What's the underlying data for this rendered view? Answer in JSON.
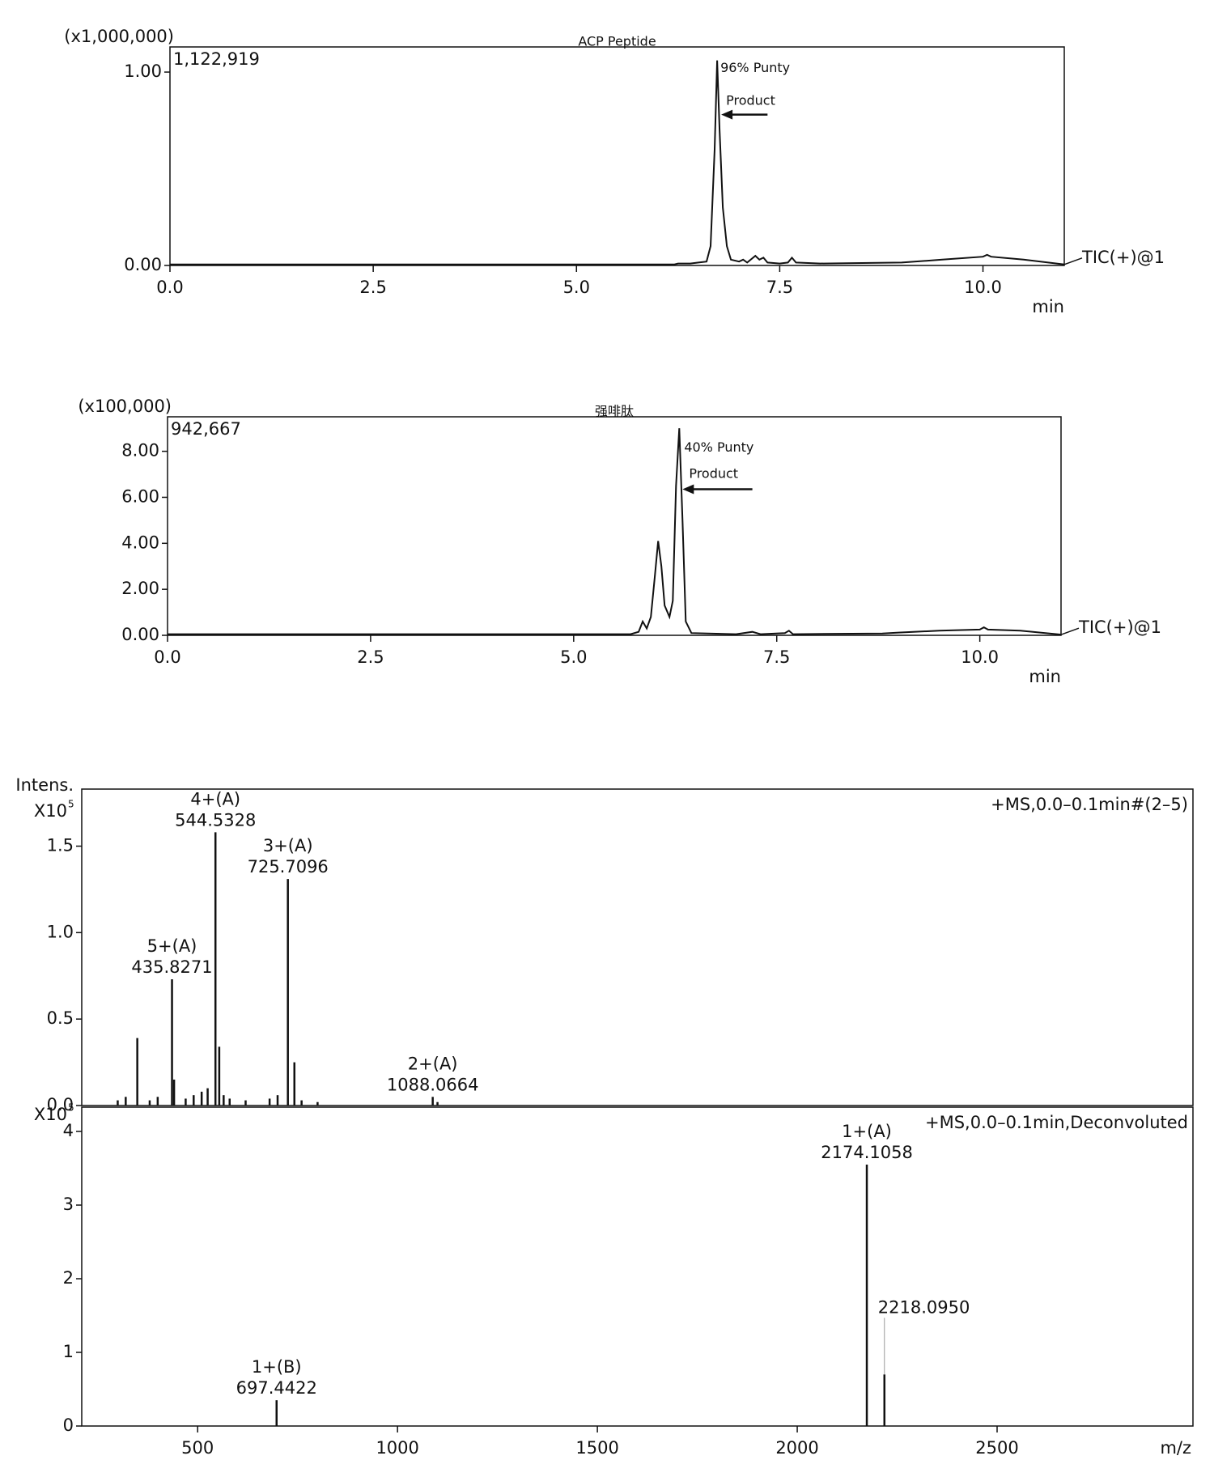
{
  "chart_data": [
    {
      "type": "line",
      "title": "ACP Peptide",
      "y_multiplier": "(x1,000,000)",
      "max_intensity_label": "1,122,919",
      "trace_label": "TIC(+)@1",
      "xlabel": "min",
      "annotations": [
        "96% Punty",
        "Product"
      ],
      "color": "#111111",
      "xlim": [
        0,
        11
      ],
      "ylim": [
        0,
        1.13
      ],
      "xticks": [
        {
          "value": 0,
          "label": "0.0"
        },
        2.5,
        {
          "value": 5,
          "label": "5.0"
        },
        7.5,
        {
          "value": 10,
          "label": "10.0"
        }
      ],
      "yticks": [
        {
          "value": 0,
          "label": "0.00"
        },
        {
          "value": 1,
          "label": "1.00"
        }
      ],
      "x": [
        0,
        6.2,
        6.25,
        6.4,
        6.5,
        6.6,
        6.65,
        6.7,
        6.73,
        6.76,
        6.8,
        6.85,
        6.9,
        7.0,
        7.05,
        7.1,
        7.2,
        7.25,
        7.3,
        7.35,
        7.5,
        7.6,
        7.65,
        7.7,
        8.0,
        9.0,
        9.5,
        10.0,
        10.05,
        10.1,
        10.5,
        11.0
      ],
      "values": [
        0.005,
        0.005,
        0.01,
        0.01,
        0.015,
        0.02,
        0.1,
        0.6,
        1.06,
        0.7,
        0.3,
        0.1,
        0.03,
        0.02,
        0.03,
        0.015,
        0.05,
        0.03,
        0.04,
        0.015,
        0.01,
        0.015,
        0.04,
        0.015,
        0.01,
        0.015,
        0.03,
        0.045,
        0.055,
        0.045,
        0.03,
        0.005
      ]
    },
    {
      "type": "line",
      "title": "强啡肽",
      "y_multiplier": "(x100,000)",
      "max_intensity_label": "942,667",
      "trace_label": "TIC(+)@1",
      "xlabel": "min",
      "annotations": [
        "40% Punty",
        "Product"
      ],
      "color": "#111111",
      "xlim": [
        0,
        11
      ],
      "ylim": [
        0,
        9.5
      ],
      "xticks": [
        {
          "value": 0,
          "label": "0.0"
        },
        2.5,
        {
          "value": 5,
          "label": "5.0"
        },
        7.5,
        {
          "value": 10,
          "label": "10.0"
        }
      ],
      "yticks": [
        {
          "value": 0,
          "label": "0.00"
        },
        {
          "value": 2,
          "label": "2.00"
        },
        {
          "value": 4,
          "label": "4.00"
        },
        {
          "value": 6,
          "label": "6.00"
        },
        {
          "value": 8,
          "label": "8.00"
        }
      ],
      "x": [
        0,
        5.7,
        5.8,
        5.85,
        5.9,
        5.95,
        6.0,
        6.04,
        6.08,
        6.12,
        6.18,
        6.22,
        6.26,
        6.3,
        6.34,
        6.38,
        6.45,
        7.0,
        7.2,
        7.3,
        7.6,
        7.65,
        7.7,
        8.8,
        9.0,
        9.5,
        10.0,
        10.05,
        10.1,
        10.5,
        11.0
      ],
      "values": [
        0.05,
        0.05,
        0.15,
        0.6,
        0.3,
        0.8,
        2.6,
        4.1,
        3.0,
        1.3,
        0.8,
        1.5,
        6.5,
        9.0,
        5.0,
        0.6,
        0.1,
        0.05,
        0.15,
        0.05,
        0.1,
        0.2,
        0.05,
        0.08,
        0.12,
        0.2,
        0.25,
        0.35,
        0.25,
        0.2,
        0.03
      ]
    },
    {
      "type": "stick",
      "ylabel": "Intens.",
      "y_multiplier": "X10",
      "y_exponent": "5",
      "legend": "+MS,0.0–0.1min#(2–5)",
      "color": "#111111",
      "xlim": [
        210,
        2990
      ],
      "ylim": [
        0,
        1.83
      ],
      "yticks": [
        {
          "value": 0,
          "label": "0.0"
        },
        0.5,
        {
          "value": 1,
          "label": "1.0"
        },
        1.5
      ],
      "x": [
        300,
        320,
        349,
        380,
        400,
        435.8271,
        441,
        470,
        490,
        510,
        525,
        544.5328,
        554,
        565,
        580,
        620,
        680,
        700,
        725.7096,
        742,
        760,
        800,
        1088.0664,
        1100
      ],
      "values": [
        0.03,
        0.05,
        0.39,
        0.03,
        0.05,
        0.73,
        0.15,
        0.04,
        0.06,
        0.08,
        0.1,
        1.58,
        0.34,
        0.06,
        0.04,
        0.03,
        0.04,
        0.06,
        1.31,
        0.25,
        0.03,
        0.02,
        0.05,
        0.02
      ],
      "peak_labels": [
        null,
        null,
        null,
        null,
        null,
        "5+(A)",
        null,
        null,
        null,
        null,
        null,
        "4+(A)",
        null,
        null,
        null,
        null,
        null,
        null,
        "3+(A)",
        null,
        null,
        null,
        "2+(A)",
        null
      ],
      "x_labels": [
        null,
        null,
        null,
        null,
        null,
        "435.8271",
        null,
        null,
        null,
        null,
        null,
        "544.5328",
        null,
        null,
        null,
        null,
        null,
        null,
        "725.7096",
        null,
        null,
        null,
        "1088.0664",
        null
      ]
    },
    {
      "type": "stick",
      "y_multiplier": "X10",
      "y_exponent": "5",
      "legend": "+MS,0.0–0.1min,Deconvoluted",
      "xlabel": "m/z",
      "color": "#111111",
      "xlim": [
        210,
        2990
      ],
      "ylim": [
        0,
        4.33
      ],
      "xticks": [
        500,
        1000,
        1500,
        2000,
        2500
      ],
      "yticks": [
        0,
        1,
        2,
        3,
        4
      ],
      "x": [
        697.4422,
        2174.1058,
        2218.095
      ],
      "values": [
        0.35,
        3.55,
        0.7
      ],
      "peak_labels": [
        "1+(B)",
        "1+(A)",
        null
      ],
      "x_labels": [
        "697.4422",
        "2174.1058",
        "2218.0950"
      ]
    }
  ]
}
